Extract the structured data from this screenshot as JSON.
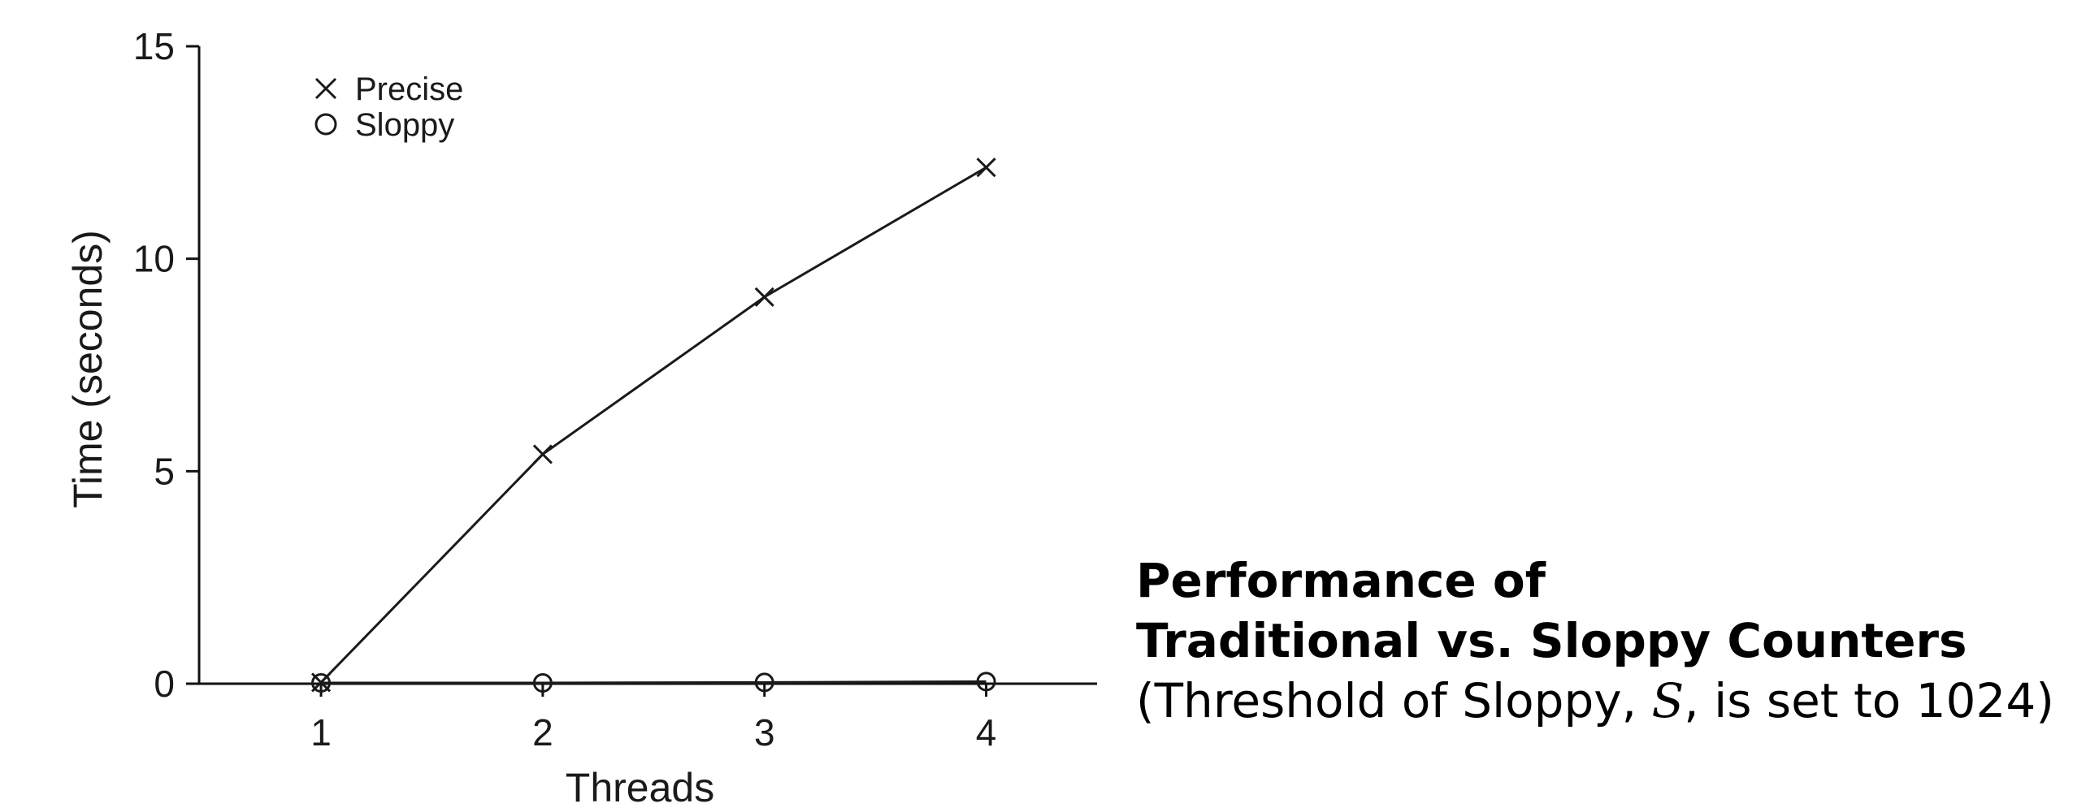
{
  "chart_data": {
    "type": "line",
    "xlabel": "Threads",
    "ylabel": "Time (seconds)",
    "xlim": [
      0.45,
      4.5
    ],
    "ylim": [
      0,
      15
    ],
    "x_ticks": [
      1,
      2,
      3,
      4
    ],
    "y_ticks": [
      0,
      5,
      10,
      15
    ],
    "grid": false,
    "legend_position": "top-left",
    "series": [
      {
        "name": "Precise",
        "marker": "x",
        "x": [
          1,
          2,
          3,
          4
        ],
        "values": [
          0.03,
          5.4,
          9.1,
          12.15
        ]
      },
      {
        "name": "Sloppy",
        "marker": "o",
        "x": [
          1,
          2,
          3,
          4
        ],
        "values": [
          0.02,
          0.02,
          0.03,
          0.05
        ]
      }
    ]
  },
  "caption": {
    "line1": "Performance of",
    "line2": "Traditional vs. Sloppy Counters",
    "line3_prefix": "(Threshold of Sloppy, ",
    "line3_var": "S",
    "line3_suffix": ", is set to 1024)"
  }
}
